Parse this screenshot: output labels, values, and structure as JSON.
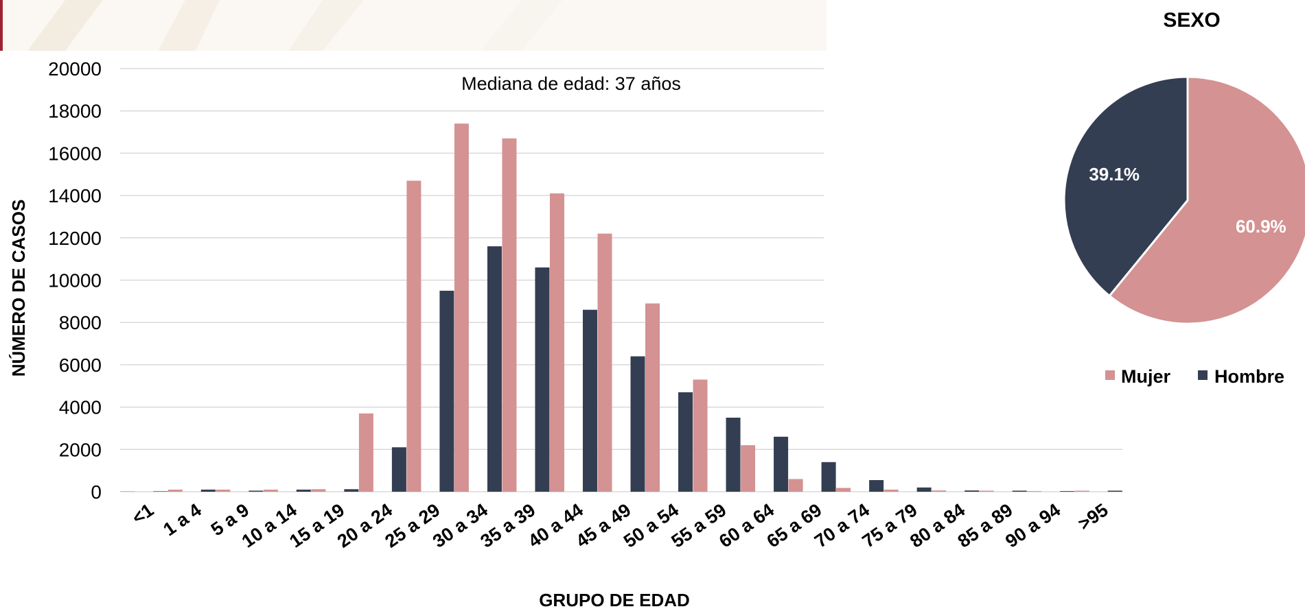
{
  "chart_data": [
    {
      "type": "bar",
      "title": "",
      "annotation": "Mediana de edad: 37 años",
      "xlabel": "GRUPO DE EDAD",
      "ylabel": "NÚMERO DE CASOS",
      "ylim": [
        0,
        20000
      ],
      "yticks": [
        0,
        2000,
        4000,
        6000,
        8000,
        10000,
        12000,
        14000,
        16000,
        18000,
        20000
      ],
      "grid": true,
      "categories": [
        "<1",
        "1 a 4",
        "5 a 9",
        "10 a 14",
        "15 a 19",
        "20 a 24",
        "25 a 29",
        "30 a 34",
        "35 a 39",
        "40 a 44",
        "45 a 49",
        "50 a 54",
        "55 a 59",
        "60 a 64",
        "65 a 69",
        "70 a 74",
        "75 a 79",
        "80 a 84",
        "85 a 89",
        "90 a 94",
        ">95"
      ],
      "series": [
        {
          "name": "Mujer",
          "color": "#D49293",
          "values": [
            20,
            100,
            100,
            100,
            120,
            3700,
            14700,
            17400,
            16700,
            14100,
            12200,
            8900,
            5300,
            2200,
            600,
            180,
            100,
            60,
            50,
            30,
            50
          ]
        },
        {
          "name": "Hombre",
          "color": "#343E52",
          "values": [
            20,
            100,
            50,
            100,
            120,
            2100,
            9500,
            11600,
            10600,
            8600,
            6400,
            4700,
            3500,
            2600,
            1400,
            550,
            200,
            60,
            50,
            30,
            50
          ]
        }
      ]
    },
    {
      "type": "pie",
      "title": "SEXO",
      "legend_position": "bottom",
      "slices": [
        {
          "name": "Mujer",
          "value": 60.9,
          "label": "60.9%",
          "color": "#D49293"
        },
        {
          "name": "Hombre",
          "value": 39.1,
          "label": "39.1%",
          "color": "#343E52"
        }
      ]
    }
  ]
}
